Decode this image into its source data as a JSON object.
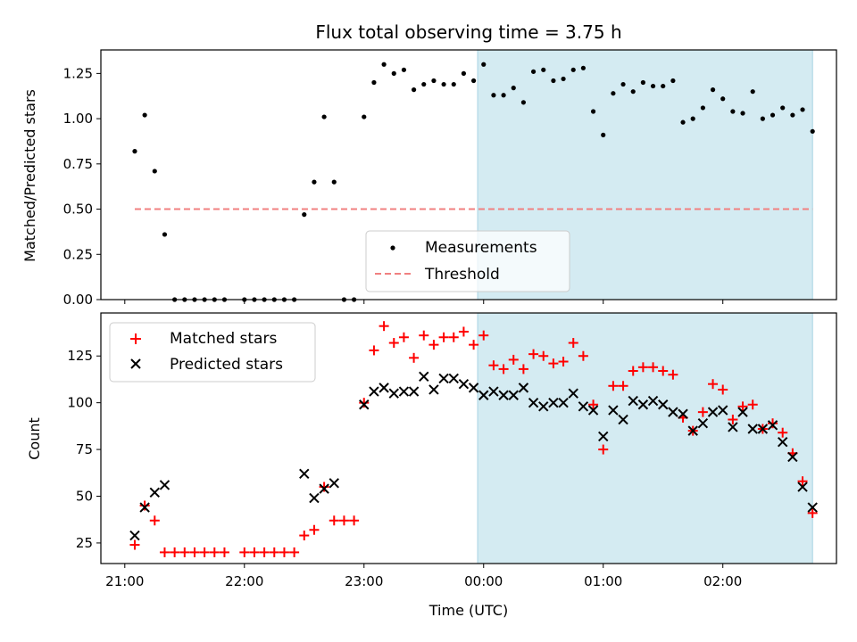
{
  "chart_data": [
    {
      "type": "scatter",
      "title": "Flux total observing time = 3.75 h",
      "xlabel": "",
      "ylabel": "Matched/Predicted stars",
      "ylim": [
        0,
        1.38
      ],
      "yticks": [
        "0.00",
        "0.25",
        "0.50",
        "0.75",
        "1.00",
        "1.25"
      ],
      "xticks_minutes": [
        0,
        60,
        120,
        180,
        240,
        300
      ],
      "threshold": 0.5,
      "threshold_range_minutes": [
        5,
        345
      ],
      "observing_window_minutes": [
        177,
        345
      ],
      "legend": [
        "Measurements",
        "Threshold"
      ],
      "legend_position": "lower-center",
      "colors": {
        "points": "#000000",
        "threshold": "#f08080",
        "window": "#d4ebf2",
        "window_edge": "#a8d4e2"
      },
      "series": [
        {
          "name": "Measurements",
          "x": [
            5,
            10,
            15,
            20,
            25,
            30,
            35,
            40,
            45,
            50,
            60,
            65,
            70,
            75,
            80,
            85,
            90,
            95,
            100,
            105,
            110,
            115,
            120,
            125,
            130,
            135,
            140,
            145,
            150,
            155,
            160,
            165,
            170,
            175,
            180,
            185,
            190,
            195,
            200,
            205,
            210,
            215,
            220,
            225,
            230,
            235,
            240,
            245,
            250,
            255,
            260,
            265,
            270,
            275,
            280,
            285,
            290,
            295,
            300,
            305,
            310,
            315,
            320,
            325,
            330,
            335,
            340,
            345
          ],
          "y": [
            0.82,
            1.02,
            0.71,
            0.36,
            0,
            0,
            0,
            0,
            0,
            0,
            0,
            0,
            0,
            0,
            0,
            0,
            0.47,
            0.65,
            1.01,
            0.65,
            0,
            0,
            1.01,
            1.2,
            1.3,
            1.25,
            1.27,
            1.16,
            1.19,
            1.21,
            1.19,
            1.19,
            1.25,
            1.21,
            1.3,
            1.13,
            1.13,
            1.17,
            1.09,
            1.26,
            1.27,
            1.21,
            1.22,
            1.27,
            1.28,
            1.04,
            0.91,
            1.14,
            1.19,
            1.15,
            1.2,
            1.18,
            1.18,
            1.21,
            0.98,
            1.0,
            1.06,
            1.16,
            1.11,
            1.04,
            1.03,
            1.15,
            1.0,
            1.02,
            1.06,
            1.02,
            1.05,
            0.93
          ]
        }
      ]
    },
    {
      "type": "scatter",
      "title": "",
      "xlabel": "Time (UTC)",
      "ylabel": "Count",
      "ylim": [
        14,
        148
      ],
      "yticks": [
        "25",
        "50",
        "75",
        "100",
        "125"
      ],
      "xticks_minutes": [
        0,
        60,
        120,
        180,
        240,
        300
      ],
      "xtick_labels": [
        "21:00",
        "22:00",
        "23:00",
        "00:00",
        "01:00",
        "02:00"
      ],
      "xlim_minutes": [
        -12,
        357
      ],
      "observing_window_minutes": [
        177,
        345
      ],
      "legend": [
        "Matched stars",
        "Predicted stars"
      ],
      "legend_position": "upper-left",
      "colors": {
        "matched": "#ff0000",
        "predicted": "#000000"
      },
      "series": [
        {
          "name": "Matched stars",
          "x": [
            5,
            10,
            15,
            20,
            25,
            30,
            35,
            40,
            45,
            50,
            60,
            65,
            70,
            75,
            80,
            85,
            90,
            95,
            100,
            105,
            110,
            115,
            120,
            125,
            130,
            135,
            140,
            145,
            150,
            155,
            160,
            165,
            170,
            175,
            180,
            185,
            190,
            195,
            200,
            205,
            210,
            215,
            220,
            225,
            230,
            235,
            240,
            245,
            250,
            255,
            260,
            265,
            270,
            275,
            280,
            285,
            290,
            295,
            300,
            305,
            310,
            315,
            320,
            325,
            330,
            335,
            340,
            345
          ],
          "y": [
            24,
            45,
            37,
            20,
            20,
            20,
            20,
            20,
            20,
            20,
            20,
            20,
            20,
            20,
            20,
            20,
            29,
            32,
            55,
            37,
            37,
            37,
            100,
            128,
            141,
            132,
            135,
            124,
            136,
            131,
            135,
            135,
            138,
            131,
            136,
            120,
            118,
            123,
            118,
            126,
            125,
            121,
            122,
            132,
            125,
            99,
            75,
            109,
            109,
            117,
            119,
            119,
            117,
            115,
            92,
            85,
            95,
            110,
            107,
            91,
            98,
            99,
            86,
            89,
            84,
            73,
            58,
            41
          ]
        },
        {
          "name": "Predicted stars",
          "x": [
            5,
            10,
            15,
            20,
            90,
            95,
            100,
            105,
            120,
            125,
            130,
            135,
            140,
            145,
            150,
            155,
            160,
            165,
            170,
            175,
            180,
            185,
            190,
            195,
            200,
            205,
            210,
            215,
            220,
            225,
            230,
            235,
            240,
            245,
            250,
            255,
            260,
            265,
            270,
            275,
            280,
            285,
            290,
            295,
            300,
            305,
            310,
            315,
            320,
            325,
            330,
            335,
            340,
            345
          ],
          "y": [
            29,
            44,
            52,
            56,
            62,
            49,
            54,
            57,
            99,
            106,
            108,
            105,
            106,
            106,
            114,
            107,
            113,
            113,
            110,
            108,
            104,
            106,
            104,
            104,
            108,
            100,
            98,
            100,
            100,
            105,
            98,
            96,
            82,
            96,
            91,
            101,
            99,
            101,
            99,
            95,
            94,
            85,
            89,
            95,
            96,
            87,
            95,
            86,
            86,
            88,
            79,
            71,
            55,
            44
          ]
        }
      ]
    }
  ]
}
